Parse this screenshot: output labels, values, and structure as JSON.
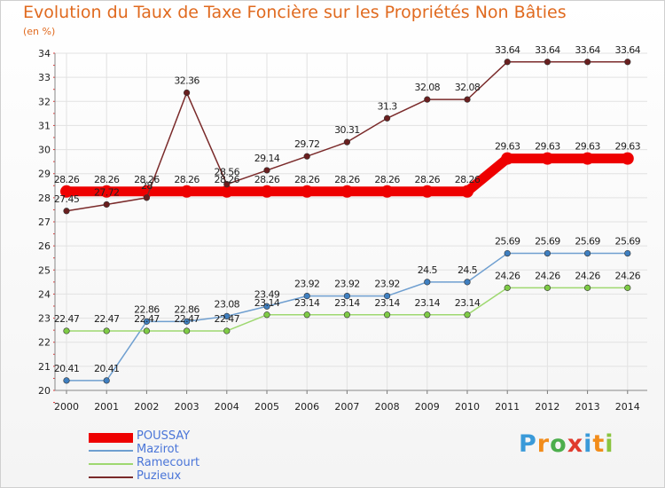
{
  "header": {
    "title": "Evolution du Taux de Taxe Foncière sur les Propriétés Non Bâties",
    "subtitle": "(en %)"
  },
  "logo": {
    "text": "Proxiti",
    "letters": [
      "P",
      "r",
      "o",
      "x",
      "i",
      "t",
      "i"
    ],
    "letter_colors": [
      "#3a9ad9",
      "#f28c1a",
      "#4cae4c",
      "#e03b2e",
      "#3a9ad9",
      "#f28c1a",
      "#8ac43f"
    ]
  },
  "chart_data": {
    "type": "line",
    "title": "Evolution du Taux de Taxe Foncière sur les Propriétés Non Bâties",
    "ylabel": "(en %)",
    "xlabel": "",
    "x": [
      "2000",
      "2001",
      "2002",
      "2003",
      "2004",
      "2005",
      "2006",
      "2007",
      "2008",
      "2009",
      "2010",
      "2011",
      "2012",
      "2013",
      "2014"
    ],
    "ylim": [
      20,
      34
    ],
    "yticks": [
      20,
      21,
      22,
      23,
      24,
      25,
      26,
      27,
      28,
      29,
      30,
      31,
      32,
      33,
      34
    ],
    "grid": true,
    "legend_position": "bottom-left",
    "series": [
      {
        "name": "POUSSAY",
        "color": "#ee0000",
        "values": [
          28.26,
          28.26,
          28.26,
          28.26,
          28.26,
          28.26,
          28.26,
          28.26,
          28.26,
          28.26,
          28.26,
          29.63,
          29.63,
          29.63,
          29.63
        ],
        "labels": [
          "28.26",
          "28.26",
          "28.26",
          "28.26",
          "28.26",
          "28.26",
          "28.26",
          "28.26",
          "28.26",
          "28.26",
          "28.26",
          "29.63",
          "29.63",
          "29.63",
          "29.63"
        ]
      },
      {
        "name": "Mazirot",
        "color": "#6f9fd0",
        "marker_color": "#3f7fc0",
        "values": [
          20.41,
          20.41,
          22.86,
          22.86,
          23.08,
          23.49,
          23.92,
          23.92,
          23.92,
          24.5,
          24.5,
          25.69,
          25.69,
          25.69,
          25.69
        ],
        "labels": [
          "20.41",
          "20.41",
          "22.86",
          "22.86",
          "23.08",
          "23.49",
          "23.92",
          "23.92",
          "23.92",
          "24.5",
          "24.5",
          "25.69",
          "25.69",
          "25.69",
          "25.69"
        ]
      },
      {
        "name": "Ramecourt",
        "color": "#9ed870",
        "marker_color": "#7ecb45",
        "values": [
          22.47,
          22.47,
          22.47,
          22.47,
          22.47,
          23.14,
          23.14,
          23.14,
          23.14,
          23.14,
          23.14,
          24.26,
          24.26,
          24.26,
          24.26
        ],
        "labels": [
          "22.47",
          "22.47",
          "22.47",
          "22.47",
          "22.47",
          "23.14",
          "23.14",
          "23.14",
          "23.14",
          "23.14",
          "23.14",
          "24.26",
          "24.26",
          "24.26",
          "24.26"
        ]
      },
      {
        "name": "Puzieux",
        "color": "#7a2a2a",
        "marker_color": "#6a1f1f",
        "values": [
          27.45,
          27.72,
          28.0,
          32.36,
          28.56,
          29.14,
          29.72,
          30.31,
          31.3,
          32.08,
          32.08,
          33.64,
          33.64,
          33.64,
          33.64
        ],
        "labels": [
          "27.45",
          "27.72",
          "28",
          "32.36",
          "28.56",
          "29.14",
          "29.72",
          "30.31",
          "31.3",
          "32.08",
          "32.08",
          "33.64",
          "33.64",
          "33.64",
          "33.64"
        ]
      }
    ]
  }
}
